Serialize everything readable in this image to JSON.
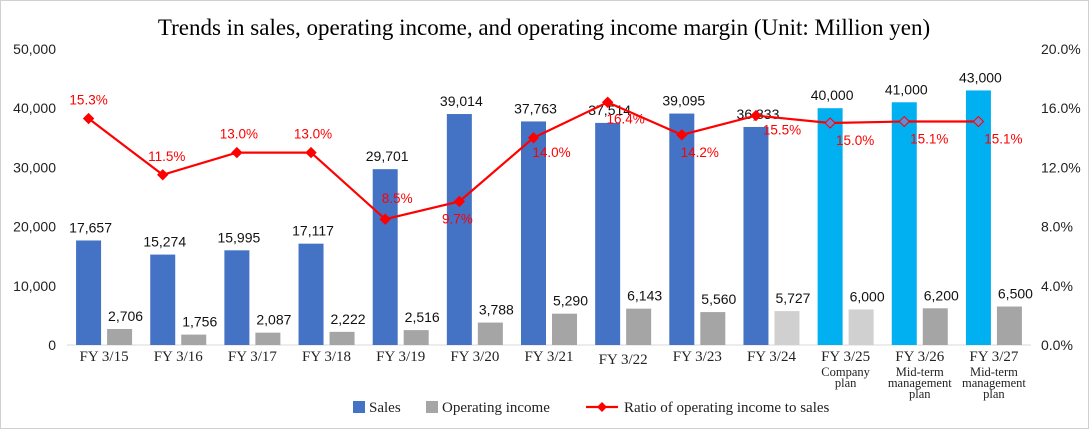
{
  "chart_data": {
    "type": "bar",
    "title": "Trends in sales, operating income, and operating income margin (Unit: Million yen)",
    "categories": [
      "FY 3/15",
      "FY 3/16",
      "FY 3/17",
      "FY 3/18",
      "FY 3/19",
      "FY 3/20",
      "FY 3/21",
      "FY 3/22",
      "FY 3/23",
      "FY 3/24",
      "FY 3/25",
      "FY 3/26",
      "FY 3/27"
    ],
    "category_sublabels": [
      "",
      "",
      "",
      "",
      "",
      "",
      "",
      "",
      "",
      "",
      [
        "Company",
        "plan"
      ],
      [
        "Mid-term",
        "management",
        "plan"
      ],
      [
        "Mid-term",
        "management",
        "plan"
      ]
    ],
    "series": [
      {
        "name": "Sales",
        "type": "bar",
        "axis": "left",
        "values": [
          17657,
          15274,
          15995,
          17117,
          29701,
          39014,
          37763,
          37514,
          39095,
          36833,
          40000,
          41000,
          43000
        ],
        "labels": [
          "17,657",
          "15,274",
          "15,995",
          "17,117",
          "29,701",
          "39,014",
          "37,763",
          "37,514",
          "39,095",
          "36,833",
          "40,000",
          "41,000",
          "43,000"
        ],
        "color": "#4472c4",
        "plan_color": "#00b0f0"
      },
      {
        "name": "Operating income",
        "type": "bar",
        "axis": "left",
        "values": [
          2706,
          1756,
          2087,
          2222,
          2516,
          3788,
          5290,
          6143,
          5560,
          5727,
          6000,
          6200,
          6500
        ],
        "labels": [
          "2,706",
          "1,756",
          "2,087",
          "2,222",
          "2,516",
          "3,788",
          "5,290",
          "6,143",
          "5,560",
          "5,727",
          "6,000",
          "6,200",
          "6,500"
        ],
        "color": "#a5a5a5",
        "plan_color": "#d0d0d0"
      },
      {
        "name": "Ratio of operating income to sales",
        "type": "line",
        "axis": "right",
        "values": [
          15.3,
          11.5,
          13.0,
          13.0,
          8.5,
          9.7,
          14.0,
          16.4,
          14.2,
          15.5,
          15.0,
          15.1,
          15.1
        ],
        "labels": [
          "15.3%",
          "11.5%",
          "13.0%",
          "13.0%",
          "8.5%",
          "9.7%",
          "14.0%",
          "16.4%",
          "14.2%",
          "15.5%",
          "15.0%",
          "15.1%",
          "15.1%"
        ],
        "color": "#ff0000",
        "plan_marker_color": "#5b8ed6"
      }
    ],
    "plan_start_index": 10,
    "light_oi_indices": [
      9,
      10
    ],
    "y_left": {
      "min": 0,
      "max": 50000,
      "ticks": [
        "0",
        "10,000",
        "20,000",
        "30,000",
        "40,000",
        "50,000"
      ]
    },
    "y_right": {
      "min": 0,
      "max": 20,
      "ticks": [
        "0.0%",
        "4.0%",
        "8.0%",
        "12.0%",
        "16.0%",
        "20.0%"
      ]
    },
    "legend_position": "bottom",
    "grid": false
  }
}
